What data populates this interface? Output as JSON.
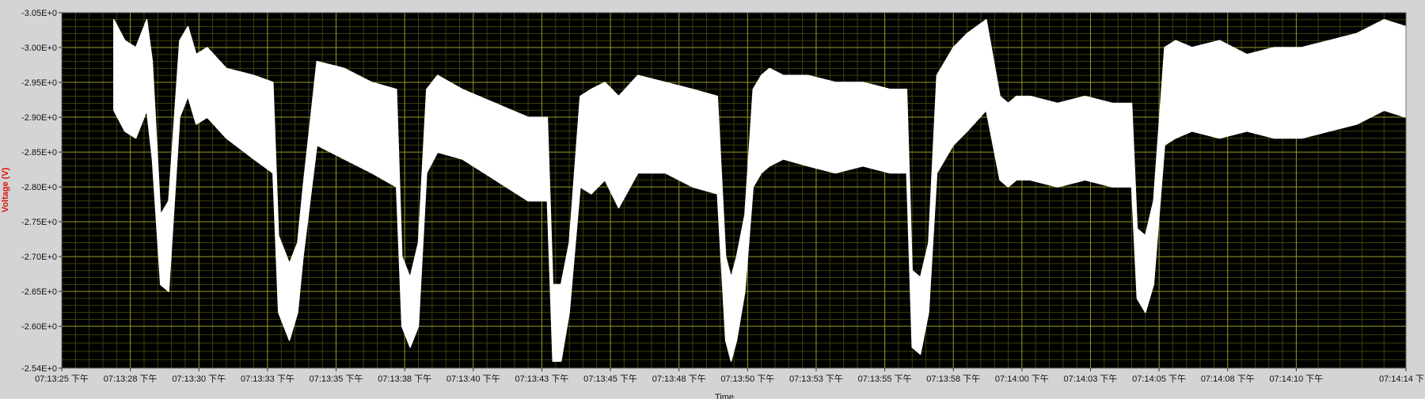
{
  "chart_data": {
    "type": "area",
    "title": "",
    "xlabel": "Time",
    "ylabel": "Voltage (V)",
    "ylim": [
      -3.05,
      -2.54
    ],
    "xlim": [
      "07:13:25",
      "07:14:14"
    ],
    "y_ticks": [
      "-2.54E+0",
      "-2.60E+0",
      "-2.65E+0",
      "-2.70E+0",
      "-2.75E+0",
      "-2.80E+0",
      "-2.85E+0",
      "-2.90E+0",
      "-2.95E+0",
      "-3.00E+0",
      "-3.05E+0"
    ],
    "y_tick_values": [
      -2.54,
      -2.6,
      -2.65,
      -2.7,
      -2.75,
      -2.8,
      -2.85,
      -2.9,
      -2.95,
      -3.0,
      -3.05
    ],
    "x_ticks": [
      "07:13:25 下午",
      "07:13:28 下午",
      "07:13:30 下午",
      "07:13:33 下午",
      "07:13:35 下午",
      "07:13:38 下午",
      "07:13:40 下午",
      "07:13:43 下午",
      "07:13:45 下午",
      "07:13:48 下午",
      "07:13:50 下午",
      "07:13:53 下午",
      "07:13:55 下午",
      "07:13:58 下午",
      "07:14:00 下午",
      "07:14:03 下午",
      "07:14:05 下午",
      "07:14:08 下午",
      "07:14:10 下午",
      "07:14:14 下"
    ],
    "x_tick_seconds": [
      0,
      2.5,
      5,
      7.5,
      10,
      12.5,
      15,
      17.5,
      20,
      22.5,
      25,
      27.5,
      30,
      32.5,
      35,
      37.5,
      40,
      42.5,
      45,
      49
    ],
    "grid": true,
    "background": "#000000",
    "grid_color": "#9a9a20",
    "minor_grid_color": "#3f3f0c",
    "series_color": "#ffffff",
    "series": [
      {
        "x": [
          1.9,
          2.3,
          2.7,
          3.0,
          3.1,
          3.3,
          3.6,
          3.9,
          4.3,
          4.6,
          4.9,
          5.3,
          6.0,
          7.0,
          7.7,
          7.9,
          8.3,
          8.6,
          8.8,
          9.3,
          10.3,
          11.3,
          12.2,
          12.4,
          12.7,
          13.0,
          13.3,
          13.7,
          14.6,
          15.8,
          17.0,
          17.7,
          17.9,
          18.2,
          18.5,
          18.9,
          19.3,
          19.8,
          20.3,
          21.0,
          22.0,
          23.0,
          23.9,
          24.2,
          24.4,
          24.6,
          24.9,
          25.2,
          25.5,
          25.8,
          26.3,
          27.2,
          28.2,
          29.2,
          30.2,
          30.8,
          31.0,
          31.3,
          31.6,
          31.9,
          32.2,
          32.5,
          33.0,
          33.7,
          34.2,
          34.5,
          34.8,
          35.3,
          36.3,
          37.3,
          38.3,
          39.0,
          39.2,
          39.5,
          39.8,
          40.2,
          40.6,
          41.2,
          42.2,
          43.2,
          44.2,
          45.2,
          46.2,
          47.2,
          48.2,
          49.0
        ],
        "upper": [
          -2.91,
          -2.88,
          -2.87,
          -2.9,
          -2.91,
          -2.84,
          -2.66,
          -2.65,
          -2.9,
          -2.93,
          -2.89,
          -2.9,
          -2.87,
          -2.84,
          -2.82,
          -2.62,
          -2.58,
          -2.62,
          -2.7,
          -2.86,
          -2.84,
          -2.82,
          -2.8,
          -2.6,
          -2.57,
          -2.6,
          -2.82,
          -2.85,
          -2.84,
          -2.81,
          -2.78,
          -2.78,
          -2.55,
          -2.55,
          -2.62,
          -2.8,
          -2.79,
          -2.81,
          -2.77,
          -2.82,
          -2.82,
          -2.8,
          -2.79,
          -2.58,
          -2.55,
          -2.58,
          -2.65,
          -2.8,
          -2.82,
          -2.83,
          -2.84,
          -2.83,
          -2.82,
          -2.83,
          -2.82,
          -2.82,
          -2.57,
          -2.56,
          -2.62,
          -2.82,
          -2.84,
          -2.86,
          -2.88,
          -2.91,
          -2.81,
          -2.8,
          -2.81,
          -2.81,
          -2.8,
          -2.81,
          -2.8,
          -2.8,
          -2.64,
          -2.62,
          -2.66,
          -2.86,
          -2.87,
          -2.88,
          -2.87,
          -2.88,
          -2.87,
          -2.87,
          -2.88,
          -2.89,
          -2.91,
          -2.9
        ],
        "lower": [
          -3.04,
          -3.01,
          -3.0,
          -3.03,
          -3.04,
          -2.98,
          -2.76,
          -2.78,
          -3.01,
          -3.03,
          -2.99,
          -3.0,
          -2.97,
          -2.96,
          -2.95,
          -2.73,
          -2.69,
          -2.72,
          -2.8,
          -2.98,
          -2.97,
          -2.95,
          -2.94,
          -2.7,
          -2.67,
          -2.72,
          -2.94,
          -2.96,
          -2.94,
          -2.92,
          -2.9,
          -2.9,
          -2.66,
          -2.66,
          -2.72,
          -2.93,
          -2.94,
          -2.95,
          -2.93,
          -2.96,
          -2.95,
          -2.94,
          -2.93,
          -2.7,
          -2.67,
          -2.7,
          -2.76,
          -2.94,
          -2.96,
          -2.97,
          -2.96,
          -2.96,
          -2.95,
          -2.95,
          -2.94,
          -2.94,
          -2.68,
          -2.67,
          -2.72,
          -2.96,
          -2.98,
          -3.0,
          -3.02,
          -3.04,
          -2.93,
          -2.92,
          -2.93,
          -2.93,
          -2.92,
          -2.93,
          -2.92,
          -2.92,
          -2.74,
          -2.73,
          -2.78,
          -3.0,
          -3.01,
          -3.0,
          -3.01,
          -2.99,
          -3.0,
          -3.0,
          -3.01,
          -3.02,
          -3.04,
          -3.03
        ]
      }
    ]
  }
}
